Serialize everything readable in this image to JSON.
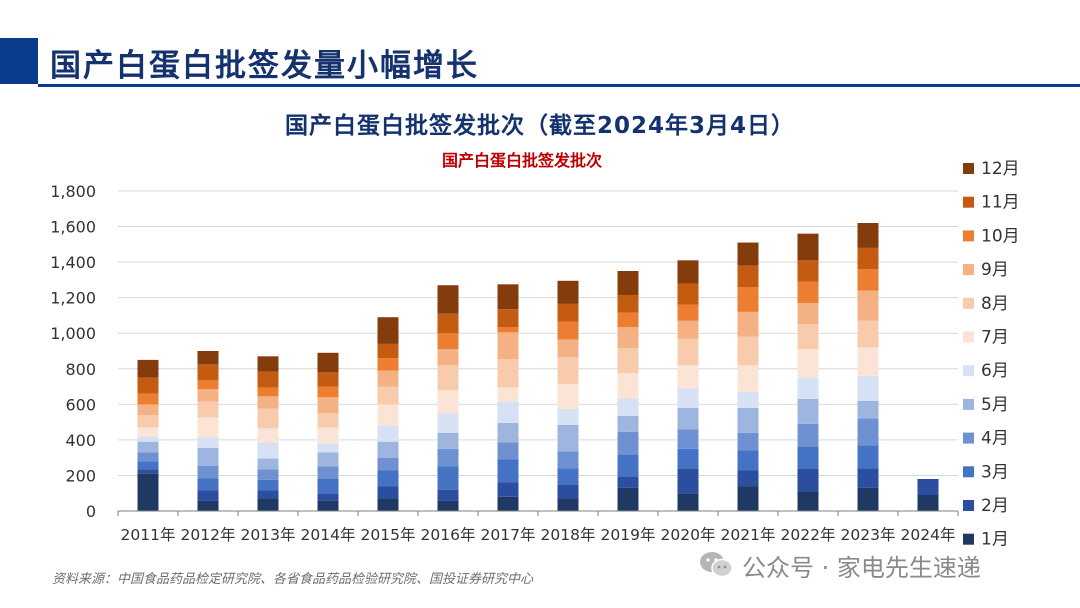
{
  "page": {
    "title": "国产白蛋白批签发量小幅增长",
    "chart_heading": "国产白蛋白批签发批次（截至2024年3月4日）",
    "source": "资料来源：中国食品药品检定研究院、各省食品药品检验研究院、国投证券研究中心",
    "watermark": "公众号 · 家电先生速递"
  },
  "colors": {
    "brand": "#0b3b8c",
    "inner_title": "#c00000"
  },
  "chart_data": {
    "type": "bar",
    "stacked": true,
    "title": "国产白蛋白批签发批次",
    "xlabel": "",
    "ylabel": "",
    "ylim": [
      0,
      1800
    ],
    "yticks": [
      0,
      200,
      400,
      600,
      800,
      1000,
      1200,
      1400,
      1600,
      1800
    ],
    "ytick_labels": [
      "0",
      "200",
      "400",
      "600",
      "800",
      "1,000",
      "1,200",
      "1,400",
      "1,600",
      "1,800"
    ],
    "grid": "horizontal",
    "legend_position": "right",
    "categories": [
      "2011年",
      "2012年",
      "2013年",
      "2014年",
      "2015年",
      "2016年",
      "2017年",
      "2018年",
      "2019年",
      "2020年",
      "2021年",
      "2022年",
      "2023年",
      "2024年"
    ],
    "series": [
      {
        "name": "1月",
        "color": "#1f3864",
        "values": [
          210,
          60,
          70,
          60,
          70,
          60,
          80,
          70,
          130,
          100,
          140,
          110,
          130,
          90
        ]
      },
      {
        "name": "2月",
        "color": "#2b4f9e",
        "values": [
          25,
          55,
          45,
          40,
          70,
          60,
          80,
          80,
          65,
          140,
          90,
          130,
          110,
          90
        ]
      },
      {
        "name": "3月",
        "color": "#4472c4",
        "values": [
          45,
          70,
          60,
          80,
          90,
          130,
          130,
          90,
          120,
          110,
          110,
          120,
          130,
          0
        ]
      },
      {
        "name": "4月",
        "color": "#6f91d2",
        "values": [
          50,
          70,
          60,
          70,
          70,
          100,
          95,
          95,
          130,
          110,
          100,
          130,
          150,
          0
        ]
      },
      {
        "name": "5月",
        "color": "#9eb5e0",
        "values": [
          60,
          100,
          60,
          80,
          90,
          90,
          110,
          150,
          90,
          120,
          140,
          140,
          100,
          0
        ]
      },
      {
        "name": "6月",
        "color": "#d6e1f3",
        "values": [
          30,
          60,
          90,
          50,
          90,
          110,
          120,
          90,
          100,
          110,
          90,
          120,
          140,
          0
        ]
      },
      {
        "name": "7月",
        "color": "#fbe4d5",
        "values": [
          50,
          110,
          80,
          90,
          120,
          130,
          80,
          140,
          140,
          130,
          150,
          160,
          160,
          0
        ]
      },
      {
        "name": "8月",
        "color": "#f8cbad",
        "values": [
          70,
          90,
          110,
          80,
          100,
          140,
          160,
          150,
          140,
          150,
          160,
          140,
          150,
          0
        ]
      },
      {
        "name": "9月",
        "color": "#f4b183",
        "values": [
          60,
          70,
          70,
          90,
          90,
          90,
          150,
          100,
          120,
          100,
          140,
          120,
          170,
          0
        ]
      },
      {
        "name": "10月",
        "color": "#ed7d31",
        "values": [
          60,
          50,
          50,
          60,
          70,
          90,
          30,
          100,
          80,
          90,
          140,
          120,
          120,
          0
        ]
      },
      {
        "name": "11月",
        "color": "#c55a11",
        "values": [
          90,
          90,
          90,
          80,
          80,
          110,
          100,
          100,
          100,
          120,
          120,
          120,
          120,
          0
        ]
      },
      {
        "name": "12月",
        "color": "#843c0c",
        "values": [
          100,
          75,
          85,
          110,
          150,
          160,
          140,
          130,
          135,
          130,
          130,
          150,
          140,
          0
        ]
      }
    ]
  }
}
